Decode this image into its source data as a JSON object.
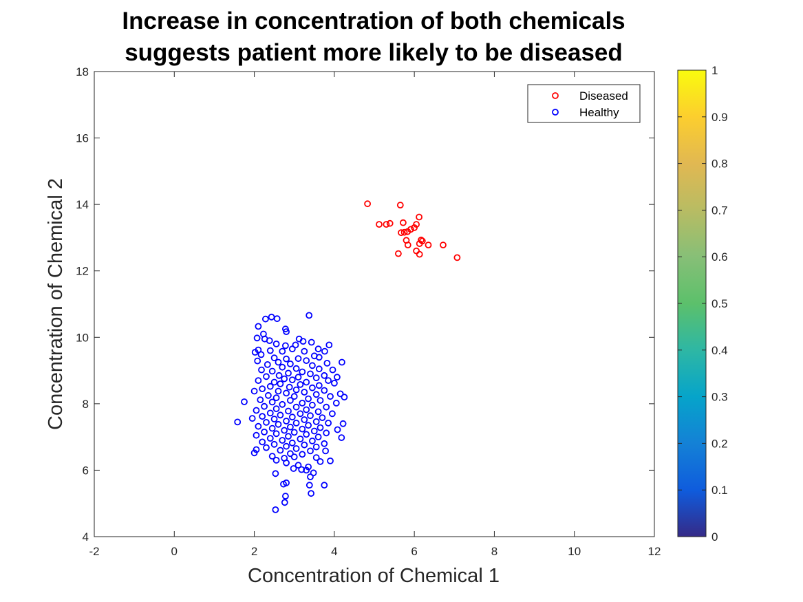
{
  "chart_data": {
    "type": "scatter",
    "title": [
      "Increase in concentration of both chemicals",
      "suggests patient more likely to be diseased"
    ],
    "xlabel": "Concentration of Chemical 1",
    "ylabel": "Concentration of Chemical 2",
    "xlim": [
      -2,
      12
    ],
    "ylim": [
      4,
      18
    ],
    "xticks": [
      "-2",
      "0",
      "2",
      "4",
      "6",
      "8",
      "10",
      "12"
    ],
    "yticks": [
      "4",
      "6",
      "8",
      "10",
      "12",
      "14",
      "16",
      "18"
    ],
    "grid": false,
    "legend_position": "top-right",
    "marker": "open-circle",
    "series": [
      {
        "name": "Diseased",
        "color": "#ff0000",
        "points": [
          [
            4.83,
            14.02
          ],
          [
            5.65,
            13.98
          ],
          [
            6.12,
            13.62
          ],
          [
            5.72,
            13.45
          ],
          [
            5.12,
            13.4
          ],
          [
            5.3,
            13.4
          ],
          [
            5.39,
            13.43
          ],
          [
            6.05,
            13.4
          ],
          [
            6.0,
            13.3
          ],
          [
            5.91,
            13.25
          ],
          [
            5.83,
            13.18
          ],
          [
            5.75,
            13.16
          ],
          [
            5.67,
            13.15
          ],
          [
            5.8,
            12.92
          ],
          [
            6.17,
            12.93
          ],
          [
            6.2,
            12.9
          ],
          [
            6.13,
            12.82
          ],
          [
            5.84,
            12.78
          ],
          [
            6.35,
            12.78
          ],
          [
            6.72,
            12.78
          ],
          [
            6.05,
            12.6
          ],
          [
            5.6,
            12.52
          ],
          [
            6.13,
            12.5
          ],
          [
            7.07,
            12.4
          ]
        ]
      },
      {
        "name": "Healthy",
        "color": "#0000ff",
        "points": [
          [
            3.37,
            10.66
          ],
          [
            2.43,
            10.61
          ],
          [
            2.57,
            10.56
          ],
          [
            2.28,
            10.55
          ],
          [
            2.1,
            10.33
          ],
          [
            2.78,
            10.25
          ],
          [
            2.8,
            10.17
          ],
          [
            2.23,
            10.1
          ],
          [
            2.07,
            9.98
          ],
          [
            2.26,
            9.95
          ],
          [
            3.12,
            9.95
          ],
          [
            2.38,
            9.9
          ],
          [
            3.22,
            9.88
          ],
          [
            3.43,
            9.85
          ],
          [
            2.55,
            9.8
          ],
          [
            2.78,
            9.75
          ],
          [
            3.03,
            9.77
          ],
          [
            3.87,
            9.77
          ],
          [
            2.95,
            9.65
          ],
          [
            3.6,
            9.65
          ],
          [
            2.1,
            9.62
          ],
          [
            2.4,
            9.6
          ],
          [
            2.7,
            9.58
          ],
          [
            3.25,
            9.58
          ],
          [
            3.76,
            9.58
          ],
          [
            2.02,
            9.55
          ],
          [
            2.17,
            9.48
          ],
          [
            3.5,
            9.44
          ],
          [
            3.62,
            9.4
          ],
          [
            2.5,
            9.38
          ],
          [
            2.8,
            9.35
          ],
          [
            3.1,
            9.36
          ],
          [
            3.3,
            9.3
          ],
          [
            2.08,
            9.29
          ],
          [
            2.6,
            9.25
          ],
          [
            4.19,
            9.25
          ],
          [
            3.82,
            9.22
          ],
          [
            2.33,
            9.18
          ],
          [
            2.9,
            9.2
          ],
          [
            3.45,
            9.15
          ],
          [
            2.7,
            9.1
          ],
          [
            3.05,
            9.06
          ],
          [
            3.62,
            9.05
          ],
          [
            2.18,
            9.02
          ],
          [
            3.96,
            9.02
          ],
          [
            2.45,
            8.98
          ],
          [
            3.2,
            8.96
          ],
          [
            2.85,
            8.92
          ],
          [
            3.4,
            8.9
          ],
          [
            2.62,
            8.85
          ],
          [
            3.75,
            8.85
          ],
          [
            2.3,
            8.82
          ],
          [
            3.1,
            8.8
          ],
          [
            3.55,
            8.78
          ],
          [
            4.07,
            8.8
          ],
          [
            2.75,
            8.75
          ],
          [
            2.95,
            8.72
          ],
          [
            2.1,
            8.7
          ],
          [
            3.85,
            8.7
          ],
          [
            2.5,
            8.65
          ],
          [
            3.3,
            8.65
          ],
          [
            4.0,
            8.62
          ],
          [
            2.65,
            8.6
          ],
          [
            3.15,
            8.58
          ],
          [
            3.62,
            8.55
          ],
          [
            2.4,
            8.52
          ],
          [
            2.88,
            8.5
          ],
          [
            3.45,
            8.48
          ],
          [
            2.2,
            8.45
          ],
          [
            3.05,
            8.42
          ],
          [
            3.75,
            8.4
          ],
          [
            2.6,
            8.38
          ],
          [
            3.25,
            8.35
          ],
          [
            2.0,
            8.38
          ],
          [
            2.8,
            8.32
          ],
          [
            4.15,
            8.3
          ],
          [
            3.55,
            8.28
          ],
          [
            2.35,
            8.25
          ],
          [
            3.0,
            8.22
          ],
          [
            3.9,
            8.22
          ],
          [
            4.25,
            8.2
          ],
          [
            2.55,
            8.18
          ],
          [
            3.35,
            8.15
          ],
          [
            2.15,
            8.12
          ],
          [
            2.9,
            8.1
          ],
          [
            3.65,
            8.1
          ],
          [
            1.75,
            8.06
          ],
          [
            2.45,
            8.05
          ],
          [
            3.2,
            8.02
          ],
          [
            4.05,
            8.02
          ],
          [
            2.7,
            7.98
          ],
          [
            3.45,
            7.96
          ],
          [
            2.25,
            7.92
          ],
          [
            3.05,
            7.9
          ],
          [
            3.8,
            7.9
          ],
          [
            2.55,
            7.85
          ],
          [
            3.3,
            7.82
          ],
          [
            2.05,
            7.8
          ],
          [
            2.85,
            7.78
          ],
          [
            3.6,
            7.76
          ],
          [
            2.4,
            7.72
          ],
          [
            3.15,
            7.7
          ],
          [
            3.95,
            7.7
          ],
          [
            2.65,
            7.66
          ],
          [
            3.4,
            7.64
          ],
          [
            2.2,
            7.62
          ],
          [
            2.95,
            7.6
          ],
          [
            1.95,
            7.56
          ],
          [
            3.7,
            7.58
          ],
          [
            2.5,
            7.54
          ],
          [
            3.25,
            7.52
          ],
          [
            2.8,
            7.48
          ],
          [
            3.55,
            7.46
          ],
          [
            2.3,
            7.44
          ],
          [
            1.58,
            7.45
          ],
          [
            3.05,
            7.42
          ],
          [
            3.85,
            7.42
          ],
          [
            4.22,
            7.4
          ],
          [
            2.6,
            7.38
          ],
          [
            3.35,
            7.35
          ],
          [
            2.1,
            7.32
          ],
          [
            2.9,
            7.3
          ],
          [
            3.65,
            7.28
          ],
          [
            2.45,
            7.26
          ],
          [
            3.2,
            7.24
          ],
          [
            4.08,
            7.22
          ],
          [
            2.75,
            7.2
          ],
          [
            3.5,
            7.18
          ],
          [
            2.25,
            7.15
          ],
          [
            3.0,
            7.14
          ],
          [
            3.8,
            7.12
          ],
          [
            2.55,
            7.1
          ],
          [
            3.3,
            7.08
          ],
          [
            2.05,
            7.05
          ],
          [
            2.85,
            7.02
          ],
          [
            3.6,
            7.0
          ],
          [
            4.18,
            6.98
          ],
          [
            2.4,
            6.96
          ],
          [
            3.15,
            6.94
          ],
          [
            2.7,
            6.9
          ],
          [
            3.45,
            6.88
          ],
          [
            2.2,
            6.85
          ],
          [
            2.95,
            6.82
          ],
          [
            3.75,
            6.8
          ],
          [
            2.5,
            6.78
          ],
          [
            3.25,
            6.76
          ],
          [
            2.8,
            6.72
          ],
          [
            3.55,
            6.7
          ],
          [
            2.3,
            6.68
          ],
          [
            3.05,
            6.65
          ],
          [
            2.05,
            6.62
          ],
          [
            2.65,
            6.6
          ],
          [
            3.4,
            6.58
          ],
          [
            3.78,
            6.58
          ],
          [
            2.0,
            6.52
          ],
          [
            2.9,
            6.5
          ],
          [
            3.2,
            6.48
          ],
          [
            2.45,
            6.42
          ],
          [
            3.0,
            6.4
          ],
          [
            3.55,
            6.38
          ],
          [
            2.75,
            6.36
          ],
          [
            2.55,
            6.3
          ],
          [
            3.9,
            6.28
          ],
          [
            3.65,
            6.26
          ],
          [
            2.8,
            6.22
          ],
          [
            3.1,
            6.15
          ],
          [
            3.35,
            6.1
          ],
          [
            2.98,
            6.05
          ],
          [
            3.18,
            6.02
          ],
          [
            3.3,
            6.0
          ],
          [
            3.48,
            5.92
          ],
          [
            2.53,
            5.9
          ],
          [
            3.4,
            5.8
          ],
          [
            2.8,
            5.62
          ],
          [
            2.73,
            5.58
          ],
          [
            3.38,
            5.55
          ],
          [
            3.75,
            5.55
          ],
          [
            3.42,
            5.3
          ],
          [
            2.78,
            5.22
          ],
          [
            2.76,
            5.03
          ],
          [
            2.53,
            4.81
          ]
        ]
      }
    ],
    "colorbar": {
      "ticks": [
        "0",
        "0.1",
        "0.2",
        "0.3",
        "0.4",
        "0.5",
        "0.6",
        "0.7",
        "0.8",
        "0.9",
        "1"
      ],
      "range": [
        0,
        1
      ],
      "colormap": "parula"
    }
  }
}
